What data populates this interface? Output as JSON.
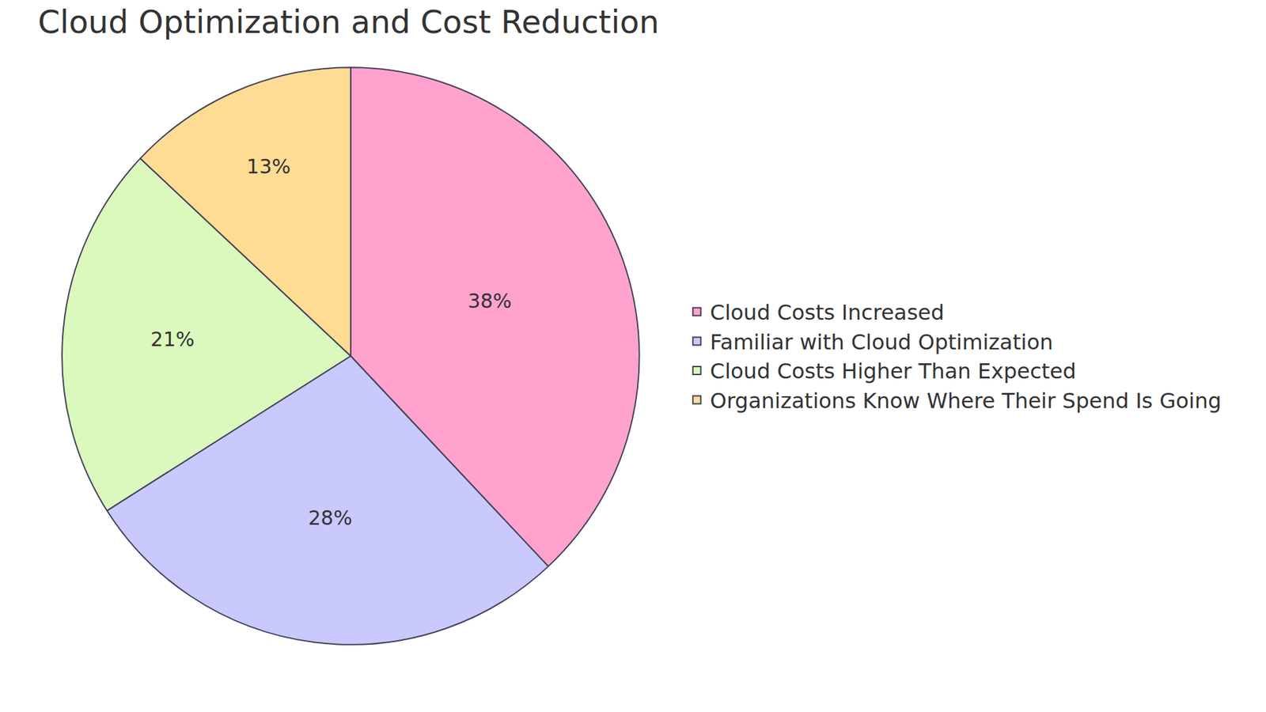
{
  "chart_data": {
    "type": "pie",
    "title": "Cloud Optimization and Cost Reduction",
    "categories": [
      "Cloud Costs Increased",
      "Familiar with Cloud Optimization",
      "Cloud Costs Higher Than Expected",
      "Organizations Know Where Their Spend Is Going"
    ],
    "values": [
      38,
      28,
      21,
      13
    ],
    "value_labels": [
      "38%",
      "28%",
      "21%",
      "13%"
    ],
    "colors": [
      "#ffa3ce",
      "#c9c9fd",
      "#dbf9bc",
      "#fedc94"
    ],
    "data_labels": true,
    "legend": "right"
  }
}
